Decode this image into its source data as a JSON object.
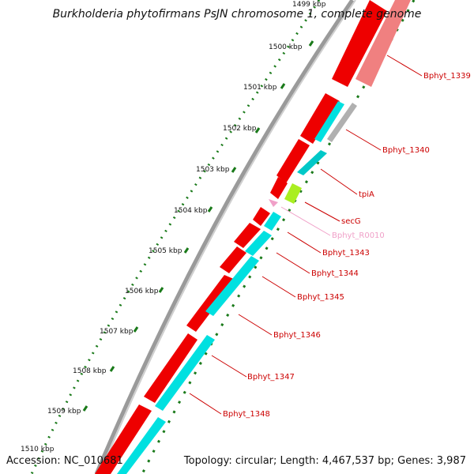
{
  "title": "Burkholderia phytofirmans PsJN chromosome 1, complete genome",
  "accession": "Accession: NC_010681",
  "topology": "Topology: circular; Length: 4,467,537 bp; Genes: 3,987",
  "scale_labels": [
    "1499 kbp",
    "1500 kbp",
    "1501 kbp",
    "1502 kbp",
    "1503 kbp",
    "1504 kbp",
    "1505 kbp",
    "1506 kbp",
    "1507 kbp",
    "1508 kbp",
    "1509 kbp",
    "1510 kbp"
  ],
  "genes": [
    {
      "id": "Bphyt_1339",
      "color": "#cc0000"
    },
    {
      "id": "Bphyt_1340",
      "color": "#cc0000"
    },
    {
      "id": "tpiA",
      "color": "#cc0000"
    },
    {
      "id": "secG",
      "color": "#cc0000"
    },
    {
      "id": "Bphyt_R0010",
      "color": "#f0a0c8"
    },
    {
      "id": "Bphyt_1343",
      "color": "#cc0000"
    },
    {
      "id": "Bphyt_1344",
      "color": "#cc0000"
    },
    {
      "id": "Bphyt_1345",
      "color": "#cc0000"
    },
    {
      "id": "Bphyt_1346",
      "color": "#cc0000"
    },
    {
      "id": "Bphyt_1347",
      "color": "#cc0000"
    },
    {
      "id": "Bphyt_1348",
      "color": "#cc0000"
    }
  ],
  "colors": {
    "forward_cds": "#ee0000",
    "reverse_cds": "#00e0e0",
    "highlight_cds": "#aaee22",
    "faded_cds": "#f08080",
    "rna": "#f0a0c8",
    "backbone": "#888888",
    "gc_dots": "#1a7a1a",
    "label": "#cc0000"
  }
}
